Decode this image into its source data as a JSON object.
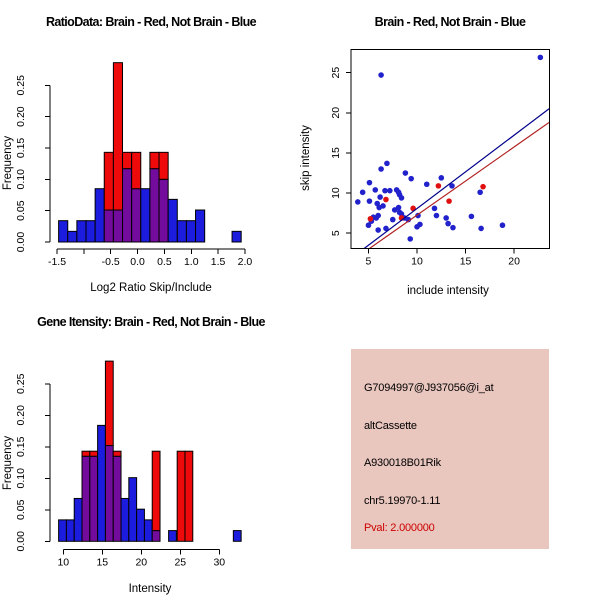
{
  "window": {
    "background": "#FFFFFF",
    "description_colors": {
      "hist_blue": "#1C1CDF",
      "hist_red": "#EE0A0A",
      "hist_overlap": "#730C9C",
      "bar_border": "#000000",
      "dot_blue": "#2222CC",
      "dot_red": "#E01010",
      "line_blue": "#00008B",
      "line_red": "#B22222",
      "axis": "#000000",
      "info_bg": "#E9C6BE",
      "pval_red": "#CC0000"
    }
  },
  "chart_data": [
    {
      "id": "ratio_hist",
      "type": "bar",
      "title": "RatioData: Brain - Red, Not Brain - Blue",
      "xlabel": "Log2 Ratio Skip/Include",
      "ylabel": "Frequency",
      "xlim": [
        -1.5,
        2.0
      ],
      "ylim": [
        0,
        0.25
      ],
      "bar_width": 0.17,
      "grid": false,
      "legend_note": "Brain histogram red, Not Brain histogram blue, overlap purple",
      "xticks": [
        {
          "v": -1.5,
          "label": "-1.5"
        },
        {
          "v": -1.0,
          "label": ""
        },
        {
          "v": -0.5,
          "label": "-0.5"
        },
        {
          "v": 0.0,
          "label": "0.0"
        },
        {
          "v": 0.5,
          "label": "0.5"
        },
        {
          "v": 1.0,
          "label": "1.0"
        },
        {
          "v": 1.5,
          "label": "1.5"
        },
        {
          "v": 2.0,
          "label": "2.0"
        }
      ],
      "yticks": [
        {
          "v": 0.0,
          "label": "0.00"
        },
        {
          "v": 0.05,
          "label": "0.05"
        },
        {
          "v": 0.1,
          "label": "0.10"
        },
        {
          "v": 0.15,
          "label": "0.15"
        },
        {
          "v": 0.2,
          "label": "0.20"
        },
        {
          "v": 0.25,
          "label": "0.25"
        }
      ],
      "bars": [
        {
          "x": -1.47,
          "blue": 0.034,
          "red": 0
        },
        {
          "x": -1.3,
          "blue": 0.017,
          "red": 0
        },
        {
          "x": -1.13,
          "blue": 0.034,
          "red": 0
        },
        {
          "x": -0.96,
          "blue": 0.034,
          "red": 0
        },
        {
          "x": -0.79,
          "blue": 0.085,
          "red": 0
        },
        {
          "x": -0.62,
          "blue": 0.051,
          "red": 0.143
        },
        {
          "x": -0.45,
          "blue": 0.051,
          "red": 0.286
        },
        {
          "x": -0.28,
          "blue": 0.117,
          "red": 0.143
        },
        {
          "x": -0.11,
          "blue": 0.085,
          "red": 0.143
        },
        {
          "x": 0.06,
          "blue": 0.085,
          "red": 0
        },
        {
          "x": 0.23,
          "blue": 0.117,
          "red": 0.143
        },
        {
          "x": 0.4,
          "blue": 0.1,
          "red": 0.143
        },
        {
          "x": 0.57,
          "blue": 0.068,
          "red": 0
        },
        {
          "x": 0.74,
          "blue": 0.034,
          "red": 0
        },
        {
          "x": 0.91,
          "blue": 0.034,
          "red": 0
        },
        {
          "x": 1.08,
          "blue": 0.051,
          "red": 0
        },
        {
          "x": 1.76,
          "blue": 0.017,
          "red": 0
        }
      ]
    },
    {
      "id": "scatter",
      "type": "scatter",
      "title": "Brain - Red, Not Brain - Blue",
      "xlabel": "include intensity",
      "ylabel": "skip intensity",
      "xlim": [
        3.2,
        23.6
      ],
      "ylim": [
        3.1,
        27.9
      ],
      "grid": false,
      "xticks": [
        {
          "v": 5,
          "label": "5"
        },
        {
          "v": 10,
          "label": "10"
        },
        {
          "v": 15,
          "label": "15"
        },
        {
          "v": 20,
          "label": "20"
        }
      ],
      "yticks": [
        {
          "v": 5,
          "label": "5"
        },
        {
          "v": 10,
          "label": "10"
        },
        {
          "v": 15,
          "label": "15"
        },
        {
          "v": 20,
          "label": "20"
        },
        {
          "v": 25,
          "label": "25"
        }
      ],
      "series": [
        {
          "name": "Not Brain",
          "color_key": "dot_blue",
          "points": [
            [
              22.7,
              26.9
            ],
            [
              6.3,
              24.7
            ],
            [
              6.9,
              13.7
            ],
            [
              6.3,
              13.0
            ],
            [
              8.8,
              12.5
            ],
            [
              9.4,
              11.8
            ],
            [
              12.5,
              11.9
            ],
            [
              11.0,
              11.1
            ],
            [
              13.6,
              10.9
            ],
            [
              5.1,
              11.3
            ],
            [
              4.4,
              10.1
            ],
            [
              5.7,
              10.4
            ],
            [
              6.2,
              9.5
            ],
            [
              6.7,
              10.3
            ],
            [
              7.2,
              10.3
            ],
            [
              7.9,
              10.4
            ],
            [
              8.1,
              10.1
            ],
            [
              8.2,
              9.8
            ],
            [
              8.4,
              9.4
            ],
            [
              3.9,
              8.9
            ],
            [
              5.1,
              9.0
            ],
            [
              5.9,
              8.7
            ],
            [
              6.1,
              8.2
            ],
            [
              6.5,
              8.4
            ],
            [
              7.7,
              7.9
            ],
            [
              8.1,
              8.2
            ],
            [
              8.2,
              7.6
            ],
            [
              8.4,
              7.4
            ],
            [
              5.5,
              7.0
            ],
            [
              5.8,
              6.9
            ],
            [
              6.0,
              7.2
            ],
            [
              7.5,
              6.7
            ],
            [
              8.7,
              6.9
            ],
            [
              9.1,
              6.7
            ],
            [
              10.1,
              7.2
            ],
            [
              10.0,
              5.8
            ],
            [
              10.3,
              6.1
            ],
            [
              12.0,
              7.2
            ],
            [
              11.8,
              8.1
            ],
            [
              13.0,
              6.9
            ],
            [
              13.2,
              6.2
            ],
            [
              13.7,
              5.7
            ],
            [
              15.6,
              7.1
            ],
            [
              16.5,
              10.1
            ],
            [
              16.6,
              5.6
            ],
            [
              18.8,
              6.0
            ],
            [
              5.0,
              6.0
            ],
            [
              6.0,
              5.4
            ],
            [
              6.8,
              5.6
            ],
            [
              9.3,
              4.3
            ],
            [
              5.3,
              6.5
            ]
          ]
        },
        {
          "name": "Brain",
          "color_key": "dot_red",
          "points": [
            [
              5.2,
              6.8
            ],
            [
              6.8,
              9.2
            ],
            [
              8.4,
              6.9
            ],
            [
              9.6,
              8.1
            ],
            [
              12.2,
              10.9
            ],
            [
              13.3,
              9.0
            ],
            [
              16.8,
              10.8
            ]
          ]
        }
      ],
      "lines": [
        {
          "color_key": "line_blue",
          "x1": 4.55,
          "y1": 3.1,
          "x2": 23.6,
          "y2": 20.5
        },
        {
          "color_key": "line_red",
          "x1": 5.1,
          "y1": 3.1,
          "x2": 23.6,
          "y2": 18.8
        }
      ]
    },
    {
      "id": "gene_hist",
      "type": "bar",
      "title": "Gene Itensity: Brain - Red, Not Brain - Blue",
      "xlabel": "Intensity",
      "ylabel": "Frequency",
      "xlim": [
        10,
        30
      ],
      "ylim": [
        0,
        0.25
      ],
      "bar_width": 1.0,
      "grid": false,
      "legend_note": "Brain histogram red, Not Brain histogram blue, overlap purple",
      "xticks": [
        {
          "v": 10,
          "label": "10"
        },
        {
          "v": 15,
          "label": "15"
        },
        {
          "v": 20,
          "label": "20"
        },
        {
          "v": 25,
          "label": "25"
        },
        {
          "v": 30,
          "label": "30"
        }
      ],
      "yticks": [
        {
          "v": 0.0,
          "label": "0.00"
        },
        {
          "v": 0.05,
          "label": "0.05"
        },
        {
          "v": 0.1,
          "label": "0.10"
        },
        {
          "v": 0.15,
          "label": "0.15"
        },
        {
          "v": 0.2,
          "label": "0.20"
        },
        {
          "v": 0.25,
          "label": "0.25"
        }
      ],
      "bars": [
        {
          "x": 9.4,
          "blue": 0.034,
          "red": 0
        },
        {
          "x": 10.4,
          "blue": 0.034,
          "red": 0
        },
        {
          "x": 11.4,
          "blue": 0.068,
          "red": 0
        },
        {
          "x": 12.4,
          "blue": 0.135,
          "red": 0.143
        },
        {
          "x": 13.4,
          "blue": 0.135,
          "red": 0.143
        },
        {
          "x": 14.4,
          "blue": 0.184,
          "red": 0
        },
        {
          "x": 15.4,
          "blue": 0.152,
          "red": 0.286
        },
        {
          "x": 16.4,
          "blue": 0.135,
          "red": 0.143
        },
        {
          "x": 17.4,
          "blue": 0.068,
          "red": 0
        },
        {
          "x": 18.4,
          "blue": 0.101,
          "red": 0
        },
        {
          "x": 19.4,
          "blue": 0.051,
          "red": 0
        },
        {
          "x": 20.4,
          "blue": 0.034,
          "red": 0
        },
        {
          "x": 21.4,
          "blue": 0.017,
          "red": 0.143
        },
        {
          "x": 23.5,
          "blue": 0.017,
          "red": 0
        },
        {
          "x": 24.6,
          "blue": 0,
          "red": 0.143
        },
        {
          "x": 25.6,
          "blue": 0,
          "red": 0.143
        },
        {
          "x": 31.8,
          "blue": 0.017,
          "red": 0
        }
      ]
    }
  ],
  "info_box": {
    "lines": [
      {
        "text": "G7094997@J937056@i_at",
        "color": "black"
      },
      {
        "text": "altCassette",
        "color": "black"
      },
      {
        "text": "A930018B01Rik",
        "color": "black"
      },
      {
        "text": "chr5.19970-1.11",
        "color": "black"
      },
      {
        "text": "Pval: 2.000000",
        "color": "red"
      }
    ]
  }
}
